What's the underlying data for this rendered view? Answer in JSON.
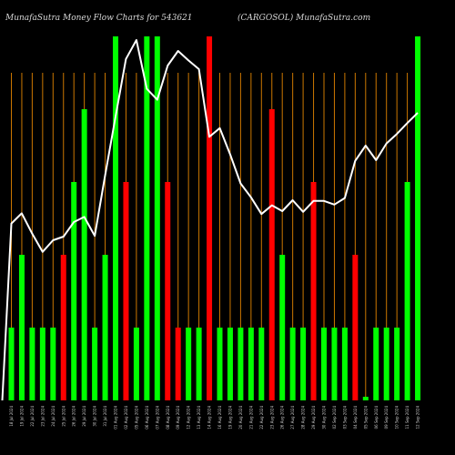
{
  "chart_data": {
    "type": "bar",
    "title_left": "MunafaSutra  Money Flow  Charts for 543621",
    "title_right": "(CARGOSOL) MunafaSutra.com",
    "colors": {
      "background": "#000000",
      "up_bar": "#00ff00",
      "down_bar": "#ff0000",
      "grid_line": "#cc7700",
      "price_line": "#ffffff"
    },
    "grid": true,
    "categories": [
      "18 Jul 2024",
      "19 Jul 2024",
      "22 Jul 2024",
      "23 Jul 2024",
      "24 Jul 2024",
      "25 Jul 2024",
      "26 Jul 2024",
      "29 Jul 2024",
      "30 Jul 2024",
      "31 Jul 2024",
      "01 Aug 2024",
      "02 Aug 2024",
      "05 Aug 2024",
      "06 Aug 2024",
      "07 Aug 2024",
      "08 Aug 2024",
      "09 Aug 2024",
      "12 Aug 2024",
      "13 Aug 2024",
      "14 Aug 2024",
      "16 Aug 2024",
      "19 Aug 2024",
      "20 Aug 2024",
      "21 Aug 2024",
      "22 Aug 2024",
      "23 Aug 2024",
      "26 Aug 2024",
      "27 Aug 2024",
      "28 Aug 2024",
      "29 Aug 2024",
      "30 Aug 2024",
      "02 Sep 2024",
      "03 Sep 2024",
      "04 Sep 2024",
      "05 Sep 2024",
      "06 Sep 2024",
      "09 Sep 2024",
      "10 Sep 2024",
      "11 Sep 2024",
      "12 Sep 2024"
    ],
    "values": [
      20,
      40,
      20,
      20,
      20,
      40,
      60,
      80,
      20,
      40,
      100,
      60,
      20,
      100,
      100,
      60,
      20,
      20,
      20,
      100,
      20,
      20,
      20,
      20,
      20,
      80,
      40,
      20,
      20,
      60,
      20,
      20,
      20,
      40,
      1,
      20,
      20,
      20,
      60,
      100
    ],
    "direction": [
      "up",
      "up",
      "up",
      "up",
      "up",
      "down",
      "up",
      "up",
      "up",
      "up",
      "up",
      "down",
      "up",
      "up",
      "up",
      "down",
      "down",
      "up",
      "up",
      "down",
      "up",
      "up",
      "up",
      "up",
      "up",
      "down",
      "up",
      "up",
      "up",
      "down",
      "up",
      "up",
      "up",
      "down",
      "up",
      "up",
      "up",
      "up",
      "up",
      "up"
    ],
    "price_line": [
      24.3,
      25.7,
      22.9,
      20.4,
      22.0,
      22.5,
      24.5,
      25.2,
      22.6,
      30.9,
      39.0,
      46.9,
      49.5,
      42.8,
      41.3,
      46.0,
      48.0,
      46.7,
      45.5,
      36.2,
      37.4,
      33.8,
      29.8,
      27.9,
      25.6,
      26.8,
      26.0,
      27.5,
      25.9,
      27.4,
      27.4,
      26.9,
      27.8,
      32.9,
      35.0,
      33.0,
      35.3,
      36.6,
      38.1,
      39.5
    ]
  }
}
